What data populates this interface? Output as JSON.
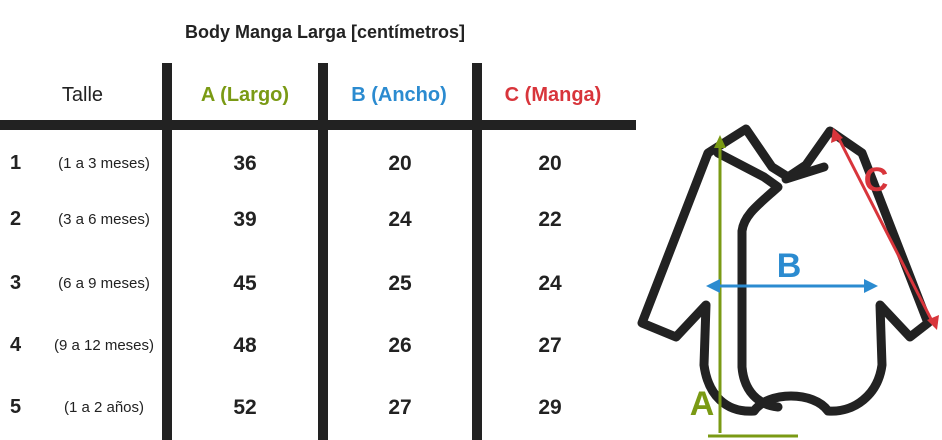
{
  "title": "Body Manga Larga [centímetros]",
  "headers": {
    "talle": "Talle",
    "a": "A (Largo)",
    "b": "B (Ancho)",
    "c": "C (Manga)"
  },
  "rows": [
    {
      "num": "1",
      "range": "(1 a 3 meses)",
      "a": "36",
      "b": "20",
      "c": "20"
    },
    {
      "num": "2",
      "range": "(3 a 6 meses)",
      "a": "39",
      "b": "24",
      "c": "22"
    },
    {
      "num": "3",
      "range": "(6 a 9 meses)",
      "a": "45",
      "b": "25",
      "c": "24"
    },
    {
      "num": "4",
      "range": "(9 a 12 meses)",
      "a": "48",
      "b": "26",
      "c": "27"
    },
    {
      "num": "5",
      "range": "(1 a 2 años)",
      "a": "52",
      "b": "27",
      "c": "29"
    }
  ],
  "diagram": {
    "label_a": "A",
    "label_b": "B",
    "label_c": "C"
  },
  "colors": {
    "a": "#7a9a14",
    "b": "#2b8bd0",
    "c": "#d8353b",
    "ink": "#222222"
  }
}
